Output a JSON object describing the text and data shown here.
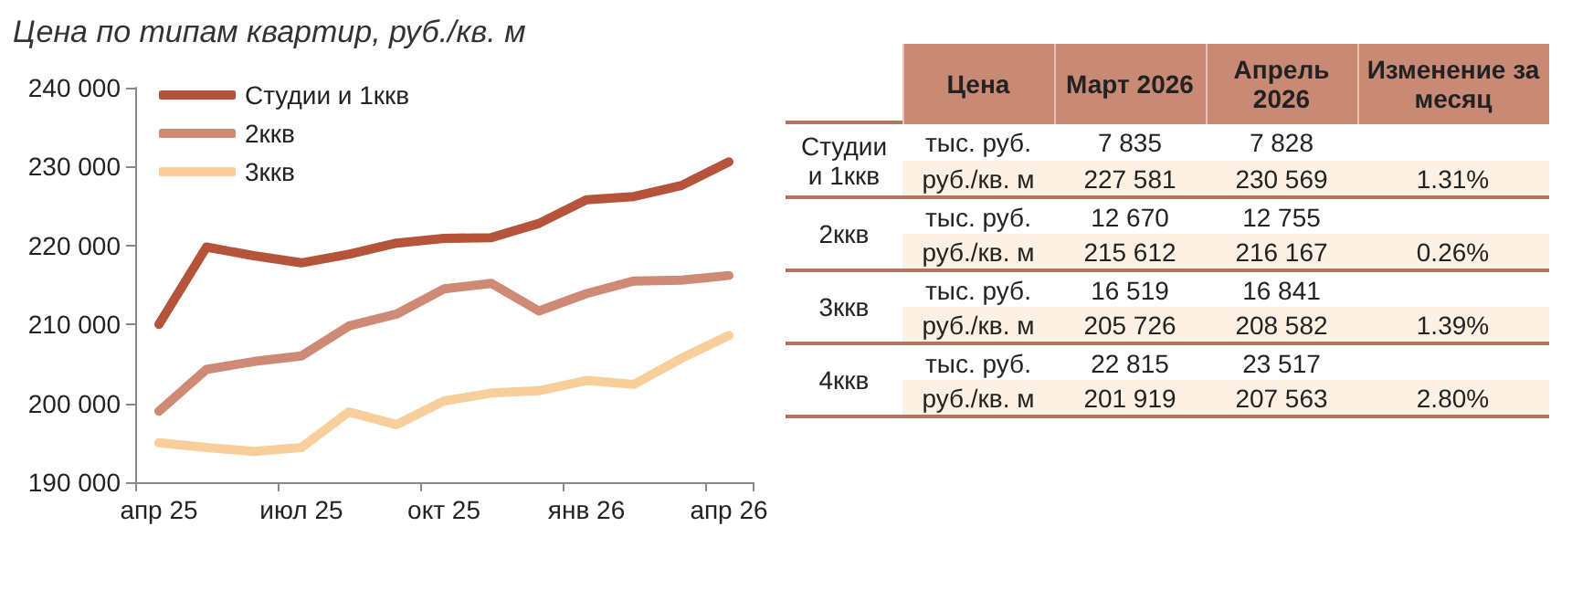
{
  "chart_data": [
    {
      "type": "line",
      "title": "Цена по типам квартир, руб./кв. м",
      "categories": [
        "апр 25",
        null,
        null,
        "июл 25",
        null,
        null,
        "окт 25",
        null,
        null,
        "янв 26",
        null,
        null,
        "апр 26"
      ],
      "series": [
        {
          "name": "Студии и 1ккв",
          "color": "#b5543a",
          "values": [
            210000,
            219800,
            218700,
            217800,
            218900,
            220300,
            220900,
            221000,
            222800,
            225800,
            226200,
            227600,
            230600
          ]
        },
        {
          "name": "2ккв",
          "color": "#cf8a76",
          "values": [
            199000,
            204300,
            205300,
            206000,
            209800,
            211300,
            214500,
            215200,
            211700,
            213900,
            215500,
            215600,
            216200
          ]
        },
        {
          "name": "3ккв",
          "color": "#f8cf9a",
          "values": [
            195000,
            194400,
            193900,
            194400,
            198900,
            197300,
            200300,
            201300,
            201600,
            202900,
            202400,
            205700,
            208600
          ]
        }
      ],
      "ylim": [
        190000,
        240000
      ],
      "yticks": [
        190000,
        200000,
        210000,
        220000,
        230000,
        240000
      ],
      "legend": "top left",
      "marker": "none",
      "line_style": "solid"
    },
    {
      "type": "other",
      "categories": [
        "Цена",
        "Март 2026",
        "Апрель 2026",
        "Изменение за месяц"
      ],
      "y_categories": [
        "Студии и 1ккв",
        null,
        "2ккв",
        null,
        "3ккв",
        null,
        "4ккв",
        null
      ],
      "cell_labels": [
        [
          "тыс. руб.",
          "7 835",
          "7 828",
          null
        ],
        [
          "руб./кв. м",
          "227 581",
          "230 569",
          "1.31%"
        ],
        [
          "тыс. руб.",
          "12 670",
          "12 755",
          null
        ],
        [
          "руб./кв. м",
          "215 612",
          "216 167",
          "0.26%"
        ],
        [
          "тыс. руб.",
          "16 519",
          "16 841",
          null
        ],
        [
          "руб./кв. м",
          "205 726",
          "208 582",
          "1.39%"
        ],
        [
          "тыс. руб.",
          "22 815",
          "23 517",
          null
        ],
        [
          "руб./кв. м",
          "201 919",
          "207 563",
          "2.80%"
        ]
      ]
    }
  ]
}
